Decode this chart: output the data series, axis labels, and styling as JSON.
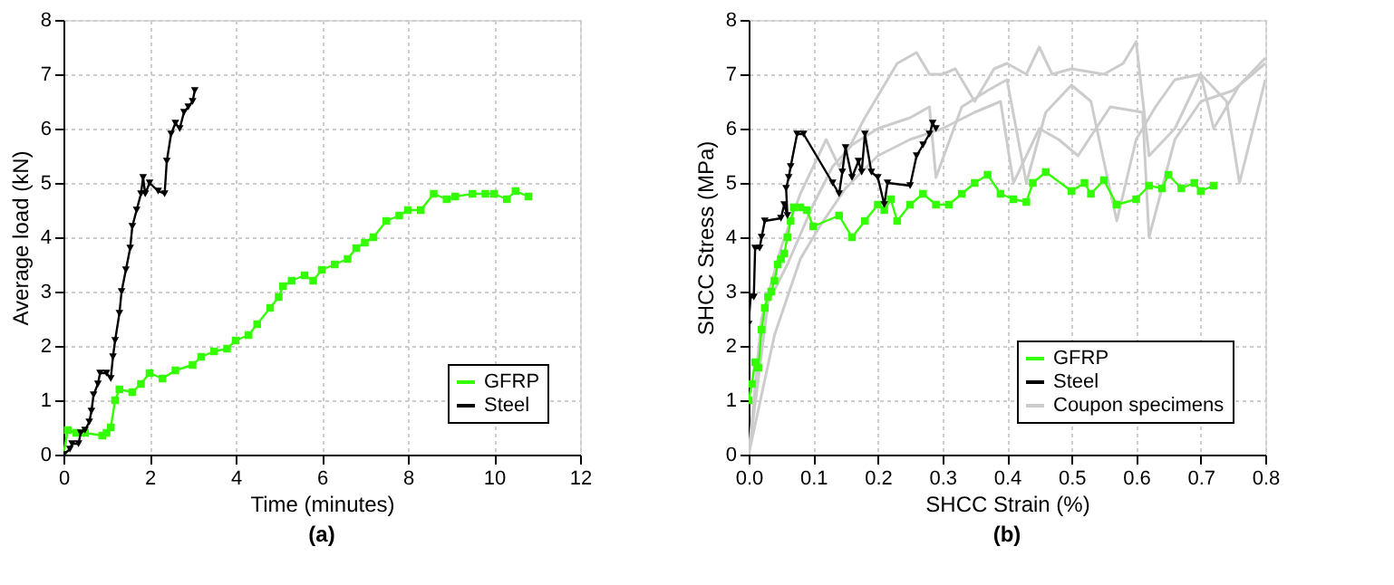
{
  "chart_data": [
    {
      "type": "line",
      "xlabel": "Time (minutes)",
      "ylabel": "Average load (kN)",
      "xlim": [
        0,
        12
      ],
      "xticks": [
        0,
        2,
        4,
        6,
        8,
        10,
        12
      ],
      "ylim": [
        0,
        8
      ],
      "yticks": [
        0,
        1,
        2,
        3,
        4,
        5,
        6,
        7,
        8
      ],
      "grid": true,
      "legend": "bottom right",
      "annotations": [
        "(a)"
      ],
      "series": [
        {
          "name": "GFRP",
          "color": "#33ff00",
          "marker": "square",
          "x": [
            0,
            0.1,
            0.3,
            0.5,
            0.9,
            1.0,
            1.1,
            1.2,
            1.3,
            1.6,
            1.8,
            2.0,
            2.3,
            2.6,
            3.0,
            3.2,
            3.5,
            3.8,
            4.0,
            4.3,
            4.5,
            4.8,
            5.0,
            5.1,
            5.3,
            5.6,
            5.8,
            6.0,
            6.3,
            6.6,
            6.8,
            7.0,
            7.2,
            7.5,
            7.8,
            8.0,
            8.3,
            8.6,
            8.9,
            9.1,
            9.5,
            9.8,
            10.0,
            10.3,
            10.5,
            10.8
          ],
          "values": [
            0,
            0.45,
            0.4,
            0.4,
            0.35,
            0.4,
            0.5,
            1.0,
            1.2,
            1.15,
            1.3,
            1.5,
            1.4,
            1.55,
            1.65,
            1.8,
            1.9,
            1.95,
            2.1,
            2.2,
            2.4,
            2.7,
            2.9,
            3.1,
            3.2,
            3.3,
            3.2,
            3.4,
            3.5,
            3.6,
            3.8,
            3.9,
            4.0,
            4.3,
            4.4,
            4.5,
            4.5,
            4.8,
            4.7,
            4.75,
            4.8,
            4.8,
            4.8,
            4.7,
            4.85,
            4.75
          ]
        },
        {
          "name": "Steel",
          "color": "#000000",
          "marker": "triangle",
          "x": [
            0,
            0.15,
            0.2,
            0.35,
            0.4,
            0.5,
            0.6,
            0.65,
            0.7,
            0.8,
            0.85,
            1.0,
            1.1,
            1.15,
            1.2,
            1.3,
            1.35,
            1.45,
            1.55,
            1.6,
            1.7,
            1.8,
            1.85,
            1.9,
            2.0,
            2.2,
            2.35,
            2.4,
            2.5,
            2.6,
            2.7,
            2.8,
            2.9,
            3.0,
            3.05
          ],
          "values": [
            0,
            0.1,
            0.2,
            0.2,
            0.4,
            0.45,
            0.6,
            0.8,
            1.1,
            1.3,
            1.5,
            1.5,
            1.4,
            1.8,
            2.1,
            2.6,
            3.0,
            3.4,
            3.8,
            4.2,
            4.5,
            4.8,
            5.1,
            4.8,
            5.0,
            4.85,
            4.8,
            5.4,
            5.9,
            6.1,
            6.0,
            6.3,
            6.4,
            6.5,
            6.7
          ]
        }
      ]
    },
    {
      "type": "line",
      "xlabel": "SHCC Strain (%)",
      "ylabel": "SHCC Stress (MPa)",
      "xlim": [
        0,
        0.8
      ],
      "xticks": [
        {
          "value": 0,
          "label": "0.0"
        },
        0.1,
        0.2,
        0.3,
        0.4,
        0.5,
        0.6,
        0.7,
        0.8
      ],
      "ylim": [
        0,
        8
      ],
      "yticks": [
        0,
        1,
        2,
        3,
        4,
        5,
        6,
        7,
        8
      ],
      "grid": true,
      "legend": "bottom right",
      "annotations": [
        "(b)"
      ],
      "series": [
        {
          "name": "GFRP",
          "color": "#33ff00",
          "marker": "square",
          "x": [
            0,
            0.005,
            0.01,
            0.015,
            0.02,
            0.025,
            0.03,
            0.035,
            0.04,
            0.045,
            0.05,
            0.055,
            0.06,
            0.065,
            0.07,
            0.08,
            0.09,
            0.1,
            0.14,
            0.16,
            0.18,
            0.2,
            0.21,
            0.22,
            0.23,
            0.25,
            0.27,
            0.29,
            0.31,
            0.33,
            0.35,
            0.37,
            0.39,
            0.41,
            0.43,
            0.44,
            0.46,
            0.5,
            0.52,
            0.53,
            0.55,
            0.57,
            0.6,
            0.62,
            0.64,
            0.65,
            0.67,
            0.69,
            0.7,
            0.72
          ],
          "values": [
            1.0,
            1.3,
            1.7,
            1.6,
            2.3,
            2.7,
            2.9,
            3.0,
            3.2,
            3.5,
            3.6,
            3.7,
            4.0,
            4.3,
            4.55,
            4.55,
            4.5,
            4.2,
            4.4,
            4.0,
            4.3,
            4.6,
            4.5,
            4.7,
            4.3,
            4.6,
            4.8,
            4.6,
            4.6,
            4.8,
            5.0,
            5.15,
            4.8,
            4.7,
            4.65,
            5.0,
            5.2,
            4.85,
            5.0,
            4.8,
            5.05,
            4.6,
            4.7,
            4.95,
            4.9,
            5.15,
            4.9,
            5.0,
            4.85,
            4.95
          ]
        },
        {
          "name": "Steel",
          "color": "#000000",
          "marker": "triangle",
          "x": [
            0,
            0.003,
            0.008,
            0.01,
            0.017,
            0.02,
            0.025,
            0.05,
            0.055,
            0.06,
            0.058,
            0.062,
            0.065,
            0.075,
            0.085,
            0.13,
            0.14,
            0.145,
            0.15,
            0.16,
            0.17,
            0.175,
            0.18,
            0.19,
            0.2,
            0.21,
            0.215,
            0.25,
            0.26,
            0.27,
            0.28,
            0.285,
            0.29
          ],
          "values": [
            2.4,
            2.9,
            2.9,
            3.8,
            3.8,
            4.0,
            4.3,
            4.35,
            4.6,
            4.4,
            4.9,
            5.1,
            5.3,
            5.9,
            5.9,
            5.0,
            4.8,
            5.2,
            5.65,
            5.1,
            5.4,
            5.2,
            5.9,
            5.2,
            5.1,
            4.6,
            5.0,
            4.95,
            5.5,
            5.7,
            5.9,
            6.1,
            6.0
          ]
        },
        {
          "name": "Coupon specimens",
          "color": "#cccccc",
          "marker": "none",
          "x": [
            0,
            0.02,
            0.05,
            0.08,
            0.1,
            0.12,
            0.14,
            0.18,
            0.2,
            0.23,
            0.26,
            0.28,
            0.3,
            0.32,
            0.35,
            0.38,
            0.4,
            0.43,
            0.45,
            0.47,
            0.5,
            0.55,
            0.58,
            0.6,
            0.62,
            0.66,
            0.7,
            0.72,
            0.76,
            0.8
          ],
          "values": [
            0,
            2.5,
            3.8,
            4.8,
            5.3,
            5.8,
            5.3,
            6.2,
            6.6,
            7.2,
            7.4,
            7.0,
            7.0,
            7.1,
            6.5,
            7.1,
            7.2,
            7.0,
            7.5,
            7.0,
            7.1,
            7.0,
            7.2,
            7.6,
            5.5,
            6.0,
            7.0,
            6.0,
            6.8,
            7.3
          ]
        },
        {
          "color": "#cccccc",
          "marker": "none",
          "x": [
            0,
            0.03,
            0.06,
            0.1,
            0.13,
            0.16,
            0.2,
            0.25,
            0.28,
            0.29,
            0.33,
            0.37,
            0.4,
            0.43,
            0.46,
            0.5,
            0.53,
            0.57,
            0.6,
            0.63,
            0.66,
            0.7,
            0.74,
            0.76,
            0.8
          ],
          "values": [
            0,
            2.8,
            3.5,
            4.6,
            5.3,
            5.7,
            6.0,
            6.2,
            6.4,
            5.1,
            6.4,
            6.7,
            6.9,
            5.0,
            6.3,
            6.8,
            6.5,
            4.3,
            5.8,
            6.4,
            6.9,
            7.0,
            6.5,
            5.0,
            6.9
          ]
        },
        {
          "color": "#cccccc",
          "marker": "none",
          "x": [
            0,
            0.04,
            0.08,
            0.11,
            0.15,
            0.2,
            0.25,
            0.3,
            0.35,
            0.39,
            0.41,
            0.45,
            0.48,
            0.51,
            0.56,
            0.61,
            0.62,
            0.66,
            0.7,
            0.75,
            0.8
          ],
          "values": [
            0,
            2.2,
            3.6,
            4.2,
            4.9,
            5.5,
            5.8,
            6.0,
            6.3,
            6.5,
            5.0,
            6.0,
            5.8,
            5.5,
            6.4,
            6.3,
            4.0,
            5.8,
            6.5,
            6.7,
            7.2
          ]
        }
      ]
    }
  ]
}
